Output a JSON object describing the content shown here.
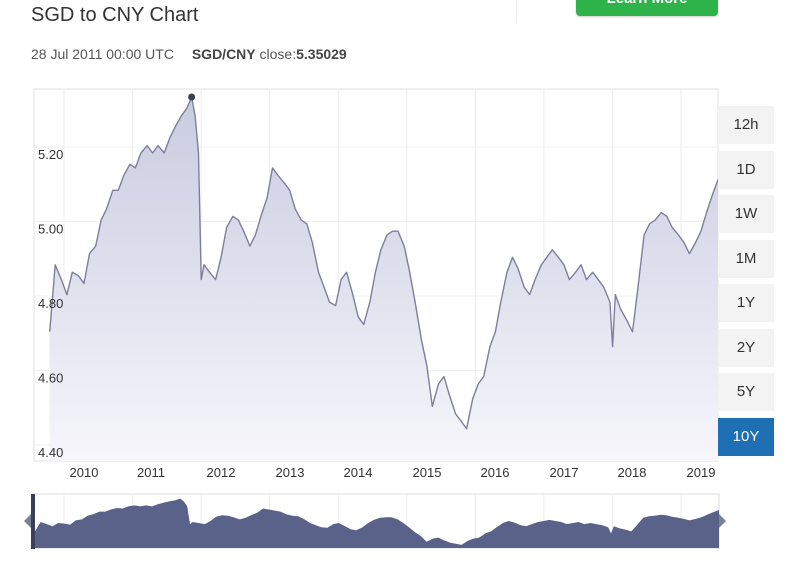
{
  "header": {
    "title": "SGD to CNY Chart",
    "cta_label": "Learn More"
  },
  "info": {
    "date": "28 Jul 2011 00:00 UTC",
    "pair": "SGD/CNY",
    "close_label": "close:",
    "close_value": "5.35029"
  },
  "ranges": [
    {
      "label": "12h",
      "active": false
    },
    {
      "label": "1D",
      "active": false
    },
    {
      "label": "1W",
      "active": false
    },
    {
      "label": "1M",
      "active": false
    },
    {
      "label": "1Y",
      "active": false
    },
    {
      "label": "2Y",
      "active": false
    },
    {
      "label": "5Y",
      "active": false
    },
    {
      "label": "10Y",
      "active": true
    }
  ],
  "colors": {
    "line": "#7d7f9b",
    "area_top": "#c9cbe0",
    "area_bottom": "#f6f6fb",
    "navigator_fill": "#5b6289",
    "active_range": "#1f6fb5"
  },
  "chart_data": {
    "type": "area",
    "title": "SGD to CNY Chart",
    "series": [
      {
        "name": "SGD/CNY"
      }
    ],
    "x_ticks": [
      "2010",
      "2011",
      "2012",
      "2013",
      "2014",
      "2015",
      "2016",
      "2017",
      "2018",
      "2019"
    ],
    "y_ticks": [
      "4.40",
      "4.60",
      "4.80",
      "5.00",
      "5.20"
    ],
    "ylim": [
      4.39,
      5.43
    ],
    "xlim": [
      2009.5,
      2019.25
    ],
    "grid": true,
    "navigator": true,
    "highlight": {
      "x": 2011.57,
      "y": 5.35029
    },
    "points": [
      [
        2009.5,
        4.72
      ],
      [
        2009.58,
        4.9
      ],
      [
        2009.67,
        4.86
      ],
      [
        2009.75,
        4.82
      ],
      [
        2009.83,
        4.88
      ],
      [
        2009.92,
        4.87
      ],
      [
        2010.0,
        4.85
      ],
      [
        2010.08,
        4.93
      ],
      [
        2010.17,
        4.95
      ],
      [
        2010.25,
        5.02
      ],
      [
        2010.33,
        5.05
      ],
      [
        2010.42,
        5.1
      ],
      [
        2010.5,
        5.1
      ],
      [
        2010.58,
        5.14
      ],
      [
        2010.67,
        5.17
      ],
      [
        2010.75,
        5.16
      ],
      [
        2010.83,
        5.2
      ],
      [
        2010.92,
        5.22
      ],
      [
        2011.0,
        5.2
      ],
      [
        2011.08,
        5.22
      ],
      [
        2011.17,
        5.2
      ],
      [
        2011.25,
        5.24
      ],
      [
        2011.33,
        5.27
      ],
      [
        2011.42,
        5.3
      ],
      [
        2011.5,
        5.32
      ],
      [
        2011.57,
        5.35
      ],
      [
        2011.62,
        5.3
      ],
      [
        2011.67,
        5.2
      ],
      [
        2011.71,
        4.86
      ],
      [
        2011.75,
        4.9
      ],
      [
        2011.83,
        4.88
      ],
      [
        2011.92,
        4.86
      ],
      [
        2012.0,
        4.92
      ],
      [
        2012.08,
        5.0
      ],
      [
        2012.17,
        5.03
      ],
      [
        2012.25,
        5.02
      ],
      [
        2012.33,
        4.99
      ],
      [
        2012.42,
        4.95
      ],
      [
        2012.5,
        4.98
      ],
      [
        2012.58,
        5.03
      ],
      [
        2012.67,
        5.08
      ],
      [
        2012.75,
        5.16
      ],
      [
        2012.83,
        5.14
      ],
      [
        2012.92,
        5.12
      ],
      [
        2013.0,
        5.1
      ],
      [
        2013.08,
        5.05
      ],
      [
        2013.17,
        5.02
      ],
      [
        2013.25,
        5.01
      ],
      [
        2013.33,
        4.96
      ],
      [
        2013.42,
        4.88
      ],
      [
        2013.5,
        4.84
      ],
      [
        2013.58,
        4.8
      ],
      [
        2013.67,
        4.79
      ],
      [
        2013.75,
        4.86
      ],
      [
        2013.83,
        4.88
      ],
      [
        2013.92,
        4.82
      ],
      [
        2014.0,
        4.76
      ],
      [
        2014.08,
        4.74
      ],
      [
        2014.17,
        4.8
      ],
      [
        2014.25,
        4.88
      ],
      [
        2014.33,
        4.94
      ],
      [
        2014.42,
        4.98
      ],
      [
        2014.5,
        4.99
      ],
      [
        2014.58,
        4.99
      ],
      [
        2014.67,
        4.95
      ],
      [
        2014.75,
        4.88
      ],
      [
        2014.83,
        4.8
      ],
      [
        2014.92,
        4.7
      ],
      [
        2015.0,
        4.63
      ],
      [
        2015.08,
        4.52
      ],
      [
        2015.17,
        4.58
      ],
      [
        2015.25,
        4.6
      ],
      [
        2015.33,
        4.55
      ],
      [
        2015.42,
        4.5
      ],
      [
        2015.5,
        4.48
      ],
      [
        2015.58,
        4.46
      ],
      [
        2015.67,
        4.54
      ],
      [
        2015.75,
        4.58
      ],
      [
        2015.83,
        4.6
      ],
      [
        2015.92,
        4.68
      ],
      [
        2016.0,
        4.72
      ],
      [
        2016.08,
        4.8
      ],
      [
        2016.17,
        4.88
      ],
      [
        2016.25,
        4.92
      ],
      [
        2016.33,
        4.89
      ],
      [
        2016.42,
        4.84
      ],
      [
        2016.5,
        4.82
      ],
      [
        2016.58,
        4.86
      ],
      [
        2016.67,
        4.9
      ],
      [
        2016.75,
        4.92
      ],
      [
        2016.83,
        4.94
      ],
      [
        2016.92,
        4.92
      ],
      [
        2017.0,
        4.9
      ],
      [
        2017.08,
        4.86
      ],
      [
        2017.17,
        4.88
      ],
      [
        2017.25,
        4.9
      ],
      [
        2017.33,
        4.86
      ],
      [
        2017.42,
        4.88
      ],
      [
        2017.5,
        4.86
      ],
      [
        2017.58,
        4.84
      ],
      [
        2017.67,
        4.8
      ],
      [
        2017.71,
        4.68
      ],
      [
        2017.75,
        4.82
      ],
      [
        2017.83,
        4.78
      ],
      [
        2017.92,
        4.75
      ],
      [
        2018.0,
        4.72
      ],
      [
        2018.08,
        4.84
      ],
      [
        2018.17,
        4.98
      ],
      [
        2018.25,
        5.01
      ],
      [
        2018.33,
        5.02
      ],
      [
        2018.42,
        5.04
      ],
      [
        2018.5,
        5.03
      ],
      [
        2018.58,
        5.0
      ],
      [
        2018.67,
        4.98
      ],
      [
        2018.75,
        4.96
      ],
      [
        2018.83,
        4.93
      ],
      [
        2018.92,
        4.96
      ],
      [
        2019.0,
        4.99
      ],
      [
        2019.08,
        5.04
      ],
      [
        2019.17,
        5.09
      ],
      [
        2019.25,
        5.13
      ]
    ]
  }
}
